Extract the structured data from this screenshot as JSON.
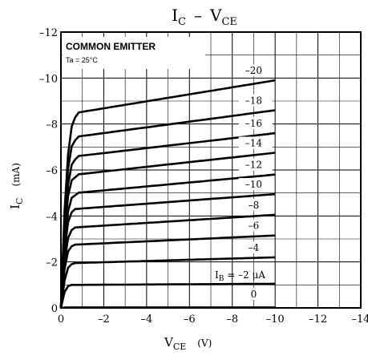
{
  "chart_data": {
    "type": "line",
    "title": {
      "main": "I",
      "main_sub": "C",
      "dash": "–",
      "v": "V",
      "v_sub": "CE"
    },
    "xlabel": {
      "main": "V",
      "sub": "CE",
      "unit": "(V)"
    },
    "ylabel": {
      "main": "I",
      "sub": "C",
      "unit": "(mA)"
    },
    "xlim": [
      0,
      -14
    ],
    "ylim": [
      0,
      -12
    ],
    "grid": true,
    "x_ticks": [
      "0",
      "–2",
      "–4",
      "–6",
      "–8",
      "–10",
      "–12",
      "–14"
    ],
    "y_ticks": [
      "0",
      "–2",
      "–4",
      "–6",
      "–8",
      "–10",
      "–12"
    ],
    "x_tick_values": [
      0,
      -2,
      -4,
      -6,
      -8,
      -10,
      -12,
      -14
    ],
    "y_tick_values": [
      0,
      -2,
      -4,
      -6,
      -8,
      -10,
      -12
    ],
    "annotation_box": {
      "line1": "COMMON EMITTER",
      "line2": "Ta = 25°C"
    },
    "ib_prefix": {
      "main": "I",
      "sub": "B",
      "rest": " = –2 μA"
    },
    "series": [
      {
        "label": "0",
        "ib": 0,
        "knee": -0.3,
        "i_sat": -0.02,
        "i_end": -0.02
      },
      {
        "label": "",
        "ib": -2,
        "knee": -0.5,
        "i_sat": -1.0,
        "i_end": -1.05
      },
      {
        "label": "–4",
        "ib": -4,
        "knee": -0.6,
        "i_sat": -1.95,
        "i_end": -2.2
      },
      {
        "label": "–6",
        "ib": -6,
        "knee": -0.6,
        "i_sat": -2.75,
        "i_end": -3.15
      },
      {
        "label": "–8",
        "ib": -8,
        "knee": -0.65,
        "i_sat": -3.5,
        "i_end": -4.05
      },
      {
        "label": "–10",
        "ib": -10,
        "knee": -0.65,
        "i_sat": -4.3,
        "i_end": -4.95
      },
      {
        "label": "–12",
        "ib": -12,
        "knee": -0.7,
        "i_sat": -5.0,
        "i_end": -5.8
      },
      {
        "label": "–14",
        "ib": -14,
        "knee": -0.7,
        "i_sat": -5.8,
        "i_end": -6.75
      },
      {
        "label": "–16",
        "ib": -16,
        "knee": -0.75,
        "i_sat": -6.6,
        "i_end": -7.6
      },
      {
        "label": "–18",
        "ib": -18,
        "knee": -0.75,
        "i_sat": -7.45,
        "i_end": -8.6
      },
      {
        "label": "–20",
        "ib": -20,
        "knee": -0.8,
        "i_sat": -8.5,
        "i_end": -9.9
      }
    ],
    "x_end": -10
  }
}
